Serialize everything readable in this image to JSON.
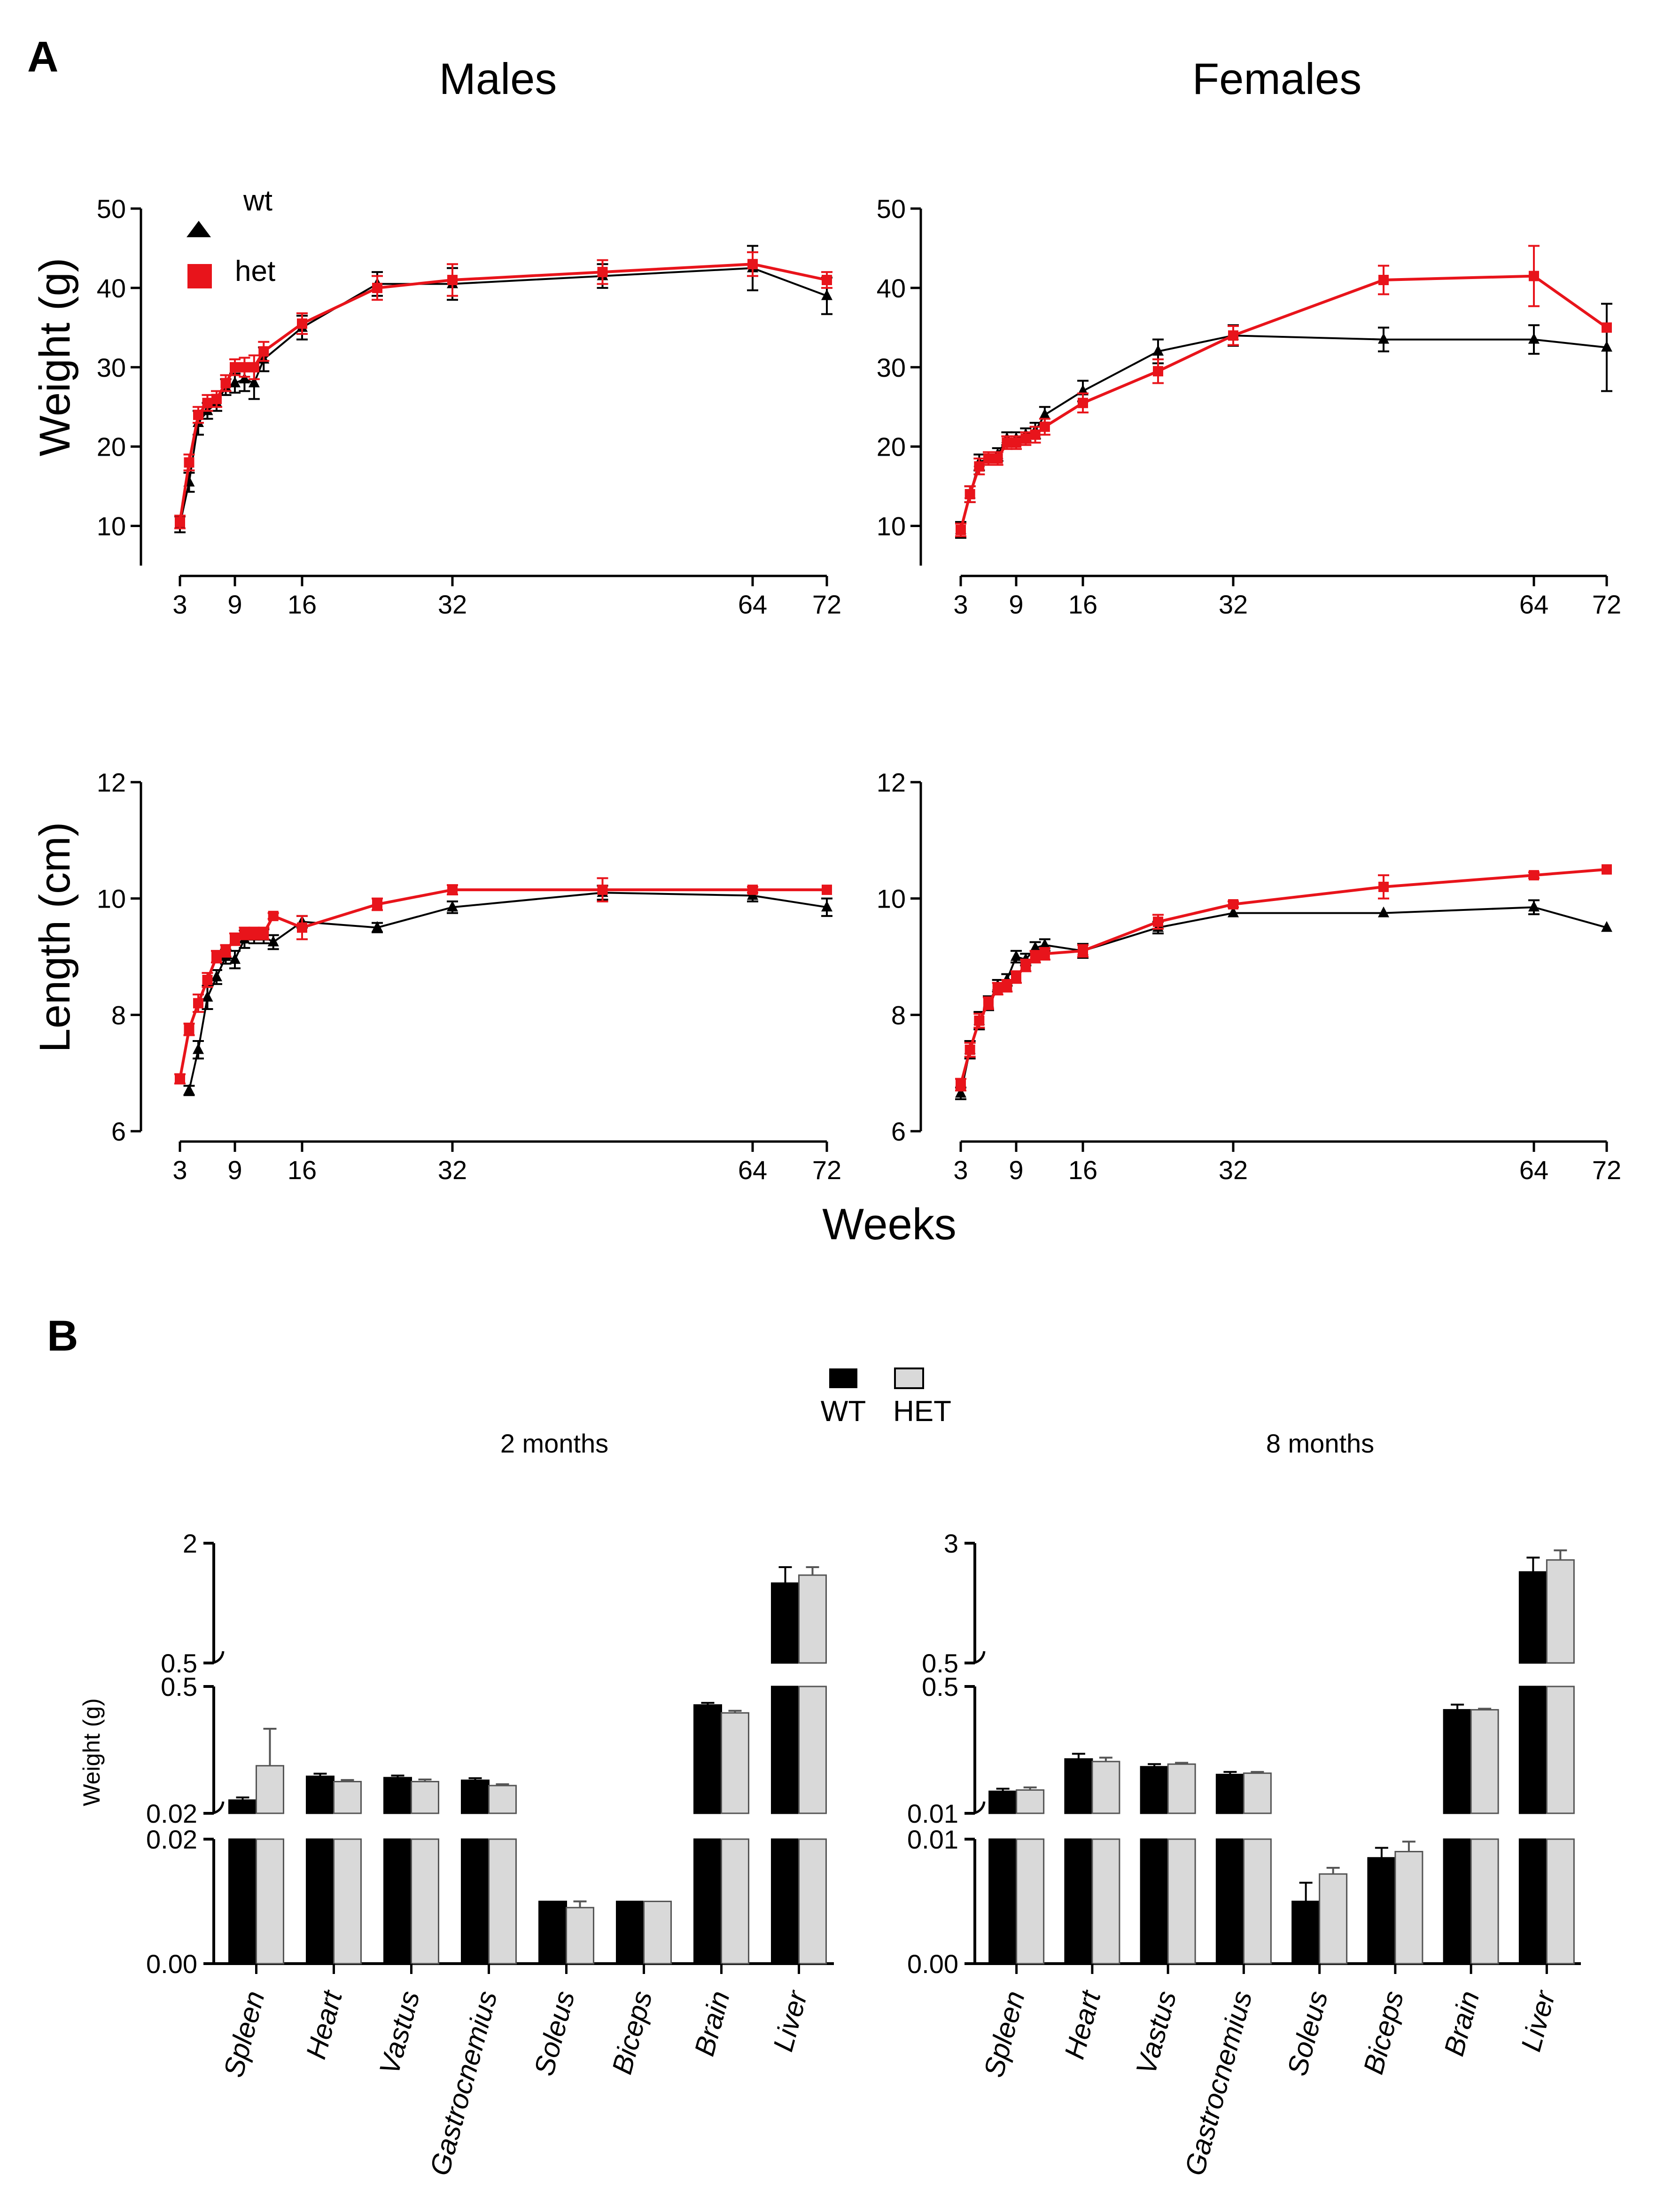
{
  "panel_labels": {
    "a": "A",
    "b": "B"
  },
  "col_titles": {
    "males": "Males",
    "females": "Females"
  },
  "weight_ylabel": "Weight (g)",
  "length_ylabel": "Length (cm)",
  "weeks_label": "Weeks",
  "legend_a": {
    "wt": "wt",
    "het": "het"
  },
  "legend_b": {
    "wt": "WT",
    "het": "HET"
  },
  "colors": {
    "wt": "#000000",
    "het": "#e8141b",
    "wt_bar": "#000000",
    "het_bar": "#d9d9d9"
  },
  "chart_data": [
    {
      "type": "line",
      "id": "males-weight",
      "title": "Males",
      "xlabel": "Weeks",
      "ylabel": "Weight (g)",
      "xlim": [
        0,
        72
      ],
      "ylim": [
        5,
        50
      ],
      "xticks": [
        3,
        9,
        16,
        32,
        64,
        72
      ],
      "yticks": [
        10,
        20,
        30,
        40,
        50
      ],
      "series": [
        {
          "name": "wt",
          "marker": "triangle",
          "x": [
            3,
            4,
            5,
            6,
            7,
            8,
            9,
            10,
            11,
            12,
            16,
            24,
            32,
            48,
            64,
            72
          ],
          "y": [
            10.2,
            15.5,
            23,
            24.5,
            25.5,
            27.5,
            28,
            28.5,
            28,
            31,
            35,
            40.5,
            40.5,
            41.5,
            42.5,
            39
          ],
          "err": [
            1,
            1.2,
            1.5,
            1,
            1,
            1,
            1.2,
            1.5,
            2,
            1.5,
            1.5,
            1.5,
            2,
            1.5,
            2.8,
            2.3
          ]
        },
        {
          "name": "het",
          "marker": "square",
          "x": [
            3,
            4,
            5,
            6,
            7,
            8,
            9,
            10,
            11,
            12,
            16,
            24,
            32,
            48,
            64,
            72
          ],
          "y": [
            10.5,
            18,
            24,
            25.5,
            26,
            28,
            30,
            30,
            30,
            32,
            35.5,
            40,
            41,
            42,
            43,
            41
          ],
          "err": [
            0.8,
            1,
            1,
            1,
            1,
            1,
            1,
            1.2,
            1.5,
            1.2,
            1.3,
            1.5,
            2,
            1.5,
            1.5,
            1
          ]
        }
      ]
    },
    {
      "type": "line",
      "id": "females-weight",
      "title": "Females",
      "xlabel": "Weeks",
      "ylabel": "Weight (g)",
      "xlim": [
        0,
        72
      ],
      "ylim": [
        5,
        50
      ],
      "xticks": [
        3,
        9,
        16,
        32,
        64,
        72
      ],
      "yticks": [
        10,
        20,
        30,
        40,
        50
      ],
      "series": [
        {
          "name": "wt",
          "marker": "triangle",
          "x": [
            3,
            4,
            5,
            6,
            7,
            8,
            9,
            10,
            11,
            12,
            16,
            24,
            32,
            48,
            64,
            72
          ],
          "y": [
            9.5,
            14,
            18,
            18.5,
            19,
            21,
            21,
            21.5,
            22,
            24,
            27,
            32,
            34,
            33.5,
            33.5,
            32.5
          ],
          "err": [
            1,
            1,
            1,
            0.8,
            0.8,
            0.8,
            0.8,
            0.8,
            1,
            1,
            1.3,
            1.5,
            1.3,
            1.5,
            1.8,
            5.5
          ]
        },
        {
          "name": "het",
          "marker": "square",
          "x": [
            3,
            4,
            5,
            6,
            7,
            8,
            9,
            10,
            11,
            12,
            16,
            24,
            32,
            48,
            64,
            72
          ],
          "y": [
            9.5,
            14,
            17.5,
            18.5,
            18.5,
            20.5,
            20.5,
            21,
            21.5,
            22.5,
            25.5,
            29.5,
            34,
            41,
            41.5,
            35
          ],
          "err": [
            0.8,
            1,
            1,
            0.8,
            0.8,
            0.8,
            0.8,
            0.8,
            1,
            1,
            1.2,
            1.5,
            1.2,
            1.8,
            3.8,
            0
          ]
        }
      ]
    },
    {
      "type": "line",
      "id": "males-length",
      "title": "",
      "xlabel": "Weeks",
      "ylabel": "Length (cm)",
      "xlim": [
        0,
        72
      ],
      "ylim": [
        6,
        12
      ],
      "xticks": [
        3,
        9,
        16,
        32,
        64,
        72
      ],
      "yticks": [
        6,
        8,
        10,
        12
      ],
      "series": [
        {
          "name": "wt",
          "marker": "triangle",
          "x": [
            4,
            5,
            6,
            7,
            8,
            9,
            10,
            11,
            12,
            13,
            16,
            24,
            32,
            48,
            64,
            72
          ],
          "y": [
            6.7,
            7.4,
            8.3,
            8.65,
            9,
            8.95,
            9.3,
            9.35,
            9.35,
            9.25,
            9.6,
            9.5,
            9.85,
            10.1,
            10.05,
            9.85
          ],
          "err": [
            0.08,
            0.15,
            0.2,
            0.12,
            0.12,
            0.15,
            0.15,
            0.12,
            0.12,
            0.12,
            0.1,
            0.08,
            0.1,
            0.12,
            0.1,
            0.15
          ]
        },
        {
          "name": "het",
          "marker": "square",
          "x": [
            3,
            4,
            5,
            6,
            7,
            8,
            9,
            10,
            11,
            12,
            13,
            16,
            24,
            32,
            48,
            64,
            72
          ],
          "y": [
            6.9,
            7.75,
            8.2,
            8.6,
            9,
            9.1,
            9.3,
            9.4,
            9.4,
            9.4,
            9.7,
            9.5,
            9.9,
            10.15,
            10.15,
            10.15,
            10.15
          ],
          "err": [
            0.08,
            0.1,
            0.15,
            0.12,
            0.1,
            0.1,
            0.1,
            0.1,
            0.1,
            0.1,
            0.05,
            0.2,
            0.1,
            0.08,
            0.2,
            0.05,
            0
          ]
        }
      ]
    },
    {
      "type": "line",
      "id": "females-length",
      "title": "",
      "xlabel": "Weeks",
      "ylabel": "Length (cm)",
      "xlim": [
        0,
        72
      ],
      "ylim": [
        6,
        12
      ],
      "xticks": [
        3,
        9,
        16,
        32,
        64,
        72
      ],
      "yticks": [
        6,
        8,
        10,
        12
      ],
      "series": [
        {
          "name": "wt",
          "marker": "triangle",
          "x": [
            3,
            4,
            5,
            6,
            7,
            8,
            9,
            10,
            11,
            12,
            16,
            24,
            32,
            48,
            64,
            72
          ],
          "y": [
            6.65,
            7.4,
            7.9,
            8.2,
            8.5,
            8.6,
            9,
            8.95,
            9.15,
            9.2,
            9.1,
            9.5,
            9.75,
            9.75,
            9.85,
            9.5
          ],
          "err": [
            0.1,
            0.15,
            0.15,
            0.12,
            0.1,
            0.1,
            0.1,
            0.1,
            0.1,
            0.1,
            0.12,
            0.1,
            0,
            0,
            0.12,
            0
          ]
        },
        {
          "name": "het",
          "marker": "square",
          "x": [
            3,
            4,
            5,
            6,
            7,
            8,
            9,
            10,
            11,
            12,
            16,
            24,
            32,
            48,
            64,
            72
          ],
          "y": [
            6.8,
            7.4,
            7.9,
            8.2,
            8.45,
            8.5,
            8.65,
            8.85,
            9,
            9.05,
            9.1,
            9.6,
            9.9,
            10.2,
            10.4,
            10.5
          ],
          "err": [
            0.1,
            0.12,
            0.12,
            0.1,
            0.1,
            0.1,
            0.1,
            0.1,
            0.1,
            0.1,
            0.1,
            0.12,
            0.05,
            0.2,
            0.05,
            0
          ]
        }
      ]
    },
    {
      "type": "bar",
      "id": "bars-2m",
      "title": "2 months",
      "ylabel": "Weight (g)",
      "categories": [
        "Spleen",
        "Heart",
        "Vastus",
        "Gastrocnemius",
        "Soleus",
        "Biceps",
        "Brain",
        "Liver"
      ],
      "segments": [
        {
          "range": [
            0,
            0.02
          ],
          "ticks": [
            "0.00",
            "0.02"
          ]
        },
        {
          "range": [
            0.02,
            0.5
          ],
          "ticks": [
            "0.02",
            "0.5"
          ]
        },
        {
          "range": [
            0.5,
            2
          ],
          "ticks": [
            "0.5",
            "2"
          ]
        }
      ],
      "series": [
        {
          "name": "WT",
          "values": [
            0.07,
            0.16,
            0.155,
            0.145,
            0.01,
            0.01,
            0.43,
            1.5
          ],
          "err": [
            0.01,
            0.01,
            0.008,
            0.008,
            0,
            0,
            0.008,
            0.2
          ]
        },
        {
          "name": "HET",
          "values": [
            0.2,
            0.14,
            0.14,
            0.125,
            0.009,
            0.01,
            0.4,
            1.6
          ],
          "err": [
            0.14,
            0.006,
            0.008,
            0.005,
            0.001,
            0,
            0.008,
            0.1
          ]
        }
      ]
    },
    {
      "type": "bar",
      "id": "bars-8m",
      "title": "8 months",
      "ylabel": "Weight (g)",
      "categories": [
        "Spleen",
        "Heart",
        "Vastus",
        "Gastrocnemius",
        "Soleus",
        "Biceps",
        "Brain",
        "Liver"
      ],
      "segments": [
        {
          "range": [
            0,
            0.01
          ],
          "ticks": [
            "0.00",
            "0.01"
          ]
        },
        {
          "range": [
            0.01,
            0.5
          ],
          "ticks": [
            "0.01",
            "0.5"
          ]
        },
        {
          "range": [
            0.5,
            3
          ],
          "ticks": [
            "0.5",
            "3"
          ]
        }
      ],
      "series": [
        {
          "name": "WT",
          "values": [
            0.095,
            0.22,
            0.19,
            0.16,
            0.005,
            0.0085,
            0.41,
            2.4
          ],
          "err": [
            0.01,
            0.02,
            0.01,
            0.01,
            0.0015,
            0.0008,
            0.02,
            0.3
          ]
        },
        {
          "name": "HET",
          "values": [
            0.1,
            0.21,
            0.2,
            0.165,
            0.0072,
            0.009,
            0.41,
            2.65
          ],
          "err": [
            0.01,
            0.015,
            0.005,
            0.005,
            0.0005,
            0.0008,
            0.004,
            0.2
          ]
        }
      ]
    }
  ]
}
